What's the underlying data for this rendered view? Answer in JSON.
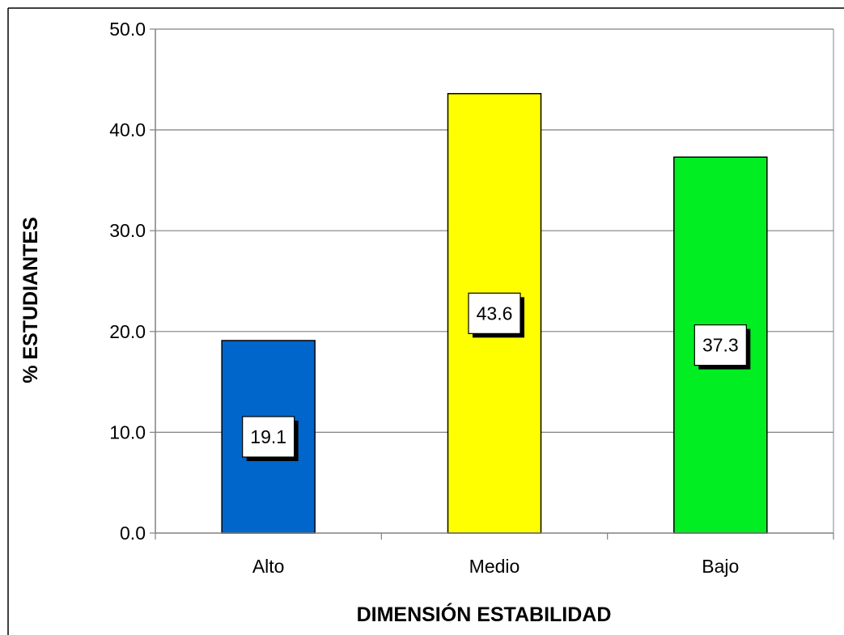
{
  "chart_data": {
    "type": "bar",
    "title": "",
    "xlabel": "DIMENSIÓN ESTABILIDAD",
    "ylabel": "% ESTUDIANTES",
    "categories": [
      "Alto",
      "Medio",
      "Bajo"
    ],
    "values": [
      19.1,
      43.6,
      37.3
    ],
    "data_labels": [
      "19.1",
      "43.6",
      "37.3"
    ],
    "colors": [
      "#0066cc",
      "#ffff00",
      "#00ee22"
    ],
    "ylim": [
      0,
      50
    ],
    "yticks": [
      "0.0",
      "10.0",
      "20.0",
      "30.0",
      "40.0",
      "50.0"
    ],
    "grid": true,
    "legend": "none"
  }
}
